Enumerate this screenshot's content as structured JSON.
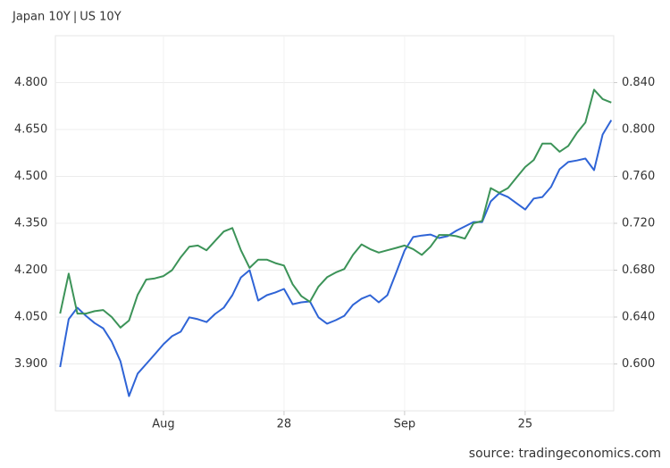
{
  "chart_data": {
    "type": "line",
    "legend_separator": "|",
    "source": "source: tradingeconomics.com",
    "categories": [
      null,
      null,
      null,
      null,
      null,
      null,
      null,
      null,
      null,
      null,
      null,
      null,
      "Aug",
      null,
      null,
      null,
      null,
      null,
      null,
      null,
      null,
      null,
      null,
      null,
      null,
      null,
      "28",
      null,
      null,
      null,
      null,
      null,
      null,
      null,
      null,
      null,
      null,
      null,
      null,
      null,
      "Sep",
      null,
      null,
      null,
      null,
      null,
      null,
      null,
      null,
      null,
      null,
      null,
      null,
      null,
      "25",
      null,
      null,
      null,
      null,
      null,
      null,
      null,
      null,
      null,
      null
    ],
    "series": [
      {
        "name": "Japan 10Y",
        "color": "#2f64d6",
        "axis": "y",
        "values": [
          3.89,
          4.043,
          4.08,
          4.054,
          4.031,
          4.014,
          3.971,
          3.909,
          3.797,
          3.869,
          3.9,
          3.931,
          3.963,
          3.989,
          4.003,
          4.049,
          4.043,
          4.034,
          4.06,
          4.08,
          4.12,
          4.177,
          4.2,
          4.103,
          4.12,
          4.129,
          4.14,
          4.091,
          4.097,
          4.1,
          4.049,
          4.029,
          4.04,
          4.054,
          4.089,
          4.109,
          4.12,
          4.097,
          4.12,
          4.191,
          4.263,
          4.306,
          4.311,
          4.314,
          4.303,
          4.309,
          4.326,
          4.34,
          4.354,
          4.354,
          4.42,
          4.446,
          4.434,
          4.414,
          4.394,
          4.429,
          4.434,
          4.466,
          4.523,
          4.546,
          4.551,
          4.557,
          4.52,
          4.634,
          4.68
        ]
      },
      {
        "name": "US 10Y",
        "color": "#3c9358",
        "axis": "y2",
        "values": [
          0.643,
          0.677,
          0.643,
          0.643,
          0.645,
          0.646,
          0.64,
          0.631,
          0.637,
          0.659,
          0.672,
          0.673,
          0.675,
          0.68,
          0.691,
          0.7,
          0.701,
          0.697,
          0.705,
          0.713,
          0.716,
          0.697,
          0.682,
          0.689,
          0.689,
          0.686,
          0.684,
          0.668,
          0.658,
          0.653,
          0.666,
          0.674,
          0.678,
          0.681,
          0.693,
          0.702,
          0.698,
          0.695,
          0.697,
          0.699,
          0.701,
          0.698,
          0.693,
          0.7,
          0.71,
          0.71,
          0.709,
          0.707,
          0.72,
          0.722,
          0.75,
          0.746,
          0.75,
          0.759,
          0.768,
          0.774,
          0.788,
          0.788,
          0.781,
          0.786,
          0.797,
          0.806,
          0.834,
          0.826,
          0.823
        ]
      }
    ],
    "ylim": [
      3.75,
      4.95
    ],
    "yticks": [
      {
        "value": 3.9,
        "label": "3.900"
      },
      {
        "value": 4.05,
        "label": "4.050"
      },
      {
        "value": 4.2,
        "label": "4.200"
      },
      {
        "value": 4.35,
        "label": "4.350"
      },
      {
        "value": 4.5,
        "label": "4.500"
      },
      {
        "value": 4.65,
        "label": "4.650"
      },
      {
        "value": 4.8,
        "label": "4.800"
      }
    ],
    "y2lim": [
      0.56,
      0.88
    ],
    "y2ticks": [
      {
        "value": 0.6,
        "label": "0.600"
      },
      {
        "value": 0.64,
        "label": "0.640"
      },
      {
        "value": 0.68,
        "label": "0.680"
      },
      {
        "value": 0.72,
        "label": "0.720"
      },
      {
        "value": 0.76,
        "label": "0.760"
      },
      {
        "value": 0.8,
        "label": "0.800"
      },
      {
        "value": 0.84,
        "label": "0.840"
      }
    ],
    "grid": true
  }
}
